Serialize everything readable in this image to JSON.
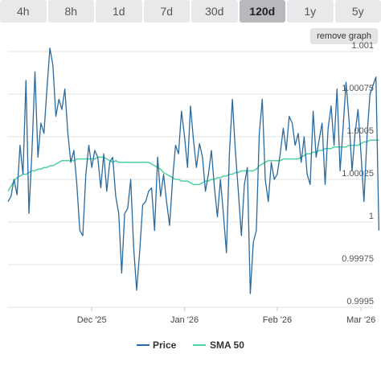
{
  "range_buttons": [
    {
      "label": "4h",
      "active": false
    },
    {
      "label": "8h",
      "active": false
    },
    {
      "label": "1d",
      "active": false
    },
    {
      "label": "7d",
      "active": false
    },
    {
      "label": "30d",
      "active": false
    },
    {
      "label": "120d",
      "active": true
    },
    {
      "label": "1y",
      "active": false
    },
    {
      "label": "5y",
      "active": false
    }
  ],
  "remove_graph_label": "remove graph",
  "colors": {
    "price": "#2a6a9e",
    "sma": "#4fd1a0"
  },
  "chart_data": {
    "type": "line",
    "y_range": [
      0.9995,
      1.001
    ],
    "y_ticks": [
      0.9995,
      0.99975,
      1,
      1.00025,
      1.0005,
      1.00075,
      1.001
    ],
    "y_tick_labels": [
      "0.9995",
      "0.99975",
      "1",
      "1.00025",
      "1.0005",
      "1.00075",
      "1.001"
    ],
    "x_range": [
      0,
      122
    ],
    "x_ticks": [
      28,
      59,
      90,
      118
    ],
    "x_tick_labels": [
      "Dec '25",
      "Jan '26",
      "Feb '26",
      "Mar '26"
    ],
    "grid": true,
    "legend_position": "bottom",
    "series": [
      {
        "name": "Price",
        "values": [
          1.00012,
          1.00015,
          1.00025,
          1.00016,
          1.00045,
          1.00028,
          1.00083,
          1.00005,
          1.00042,
          1.00088,
          1.00038,
          1.00058,
          1.00052,
          1.00078,
          1.00102,
          1.00092,
          1.00062,
          1.00072,
          1.00066,
          1.00078,
          1.00052,
          1.00035,
          1.00042,
          1.00022,
          0.99995,
          0.99992,
          1.00028,
          1.00045,
          1.00032,
          1.00042,
          1.00038,
          1.0002,
          1.0004,
          1.00018,
          1.00035,
          1.00038,
          1.00015,
          1.00005,
          0.9997,
          1.00005,
          1.00008,
          1.00025,
          0.99985,
          0.9996,
          0.99982,
          1.0001,
          1.00012,
          1.00018,
          1.0002,
          0.99995,
          1.00038,
          1.00015,
          1.00028,
          1.00012,
          0.99998,
          1.00025,
          1.00045,
          1.0004,
          1.00065,
          1.0005,
          1.00032,
          1.00068,
          1.00048,
          1.00032,
          1.00046,
          1.00038,
          1.00018,
          1.00028,
          1.00042,
          1.0002,
          1.00003,
          1.00025,
          1.00005,
          0.99982,
          1.0004,
          1.00072,
          1.00042,
          1.00018,
          0.99992,
          1.00022,
          1.00032,
          0.99958,
          0.99988,
          0.99995,
          1.00052,
          1.00072,
          1.00025,
          1.00012,
          1.00035,
          1.00025,
          1.00028,
          1.0004,
          1.00055,
          1.00042,
          1.00062,
          1.00058,
          1.00045,
          1.00052,
          1.00035,
          1.0005,
          1.00028,
          1.00022,
          1.00065,
          1.00038,
          1.00048,
          1.00058,
          1.00022,
          1.00055,
          1.00068,
          1.00045,
          1.00078,
          1.0003,
          1.00055,
          1.00082,
          1.0006,
          1.0003,
          1.00052,
          1.00066,
          1.0004,
          1.00012,
          1.0005,
          1.00075,
          1.0008,
          1.00085,
          0.99995
        ]
      },
      {
        "name": "SMA 50",
        "values": [
          1.00018,
          1.00021,
          1.00024,
          1.00026,
          1.00027,
          1.00028,
          1.00028,
          1.00029,
          1.0003,
          1.0003,
          1.00031,
          1.00031,
          1.00032,
          1.00032,
          1.00033,
          1.00033,
          1.00034,
          1.00035,
          1.00036,
          1.00036,
          1.00036,
          1.00036,
          1.00036,
          1.00037,
          1.00037,
          1.00037,
          1.00037,
          1.00037,
          1.00037,
          1.00037,
          1.00038,
          1.00038,
          1.00038,
          1.00037,
          1.00036,
          1.00035,
          1.00036,
          1.00035,
          1.00035,
          1.00035,
          1.00035,
          1.00035,
          1.00035,
          1.00035,
          1.00035,
          1.00035,
          1.00035,
          1.00035,
          1.00034,
          1.00033,
          1.00032,
          1.00031,
          1.00029,
          1.00028,
          1.00027,
          1.00026,
          1.00025,
          1.00025,
          1.00024,
          1.00024,
          1.00024,
          1.00023,
          1.00022,
          1.00022,
          1.00022,
          1.00023,
          1.00024,
          1.00024,
          1.00025,
          1.00025,
          1.00026,
          1.00026,
          1.00027,
          1.00027,
          1.00028,
          1.00028,
          1.00029,
          1.00029,
          1.0003,
          1.0003,
          1.0003,
          1.0003,
          1.0003,
          1.00031,
          1.00033,
          1.00034,
          1.00035,
          1.00036,
          1.00036,
          1.00036,
          1.00036,
          1.00036,
          1.00037,
          1.00037,
          1.00037,
          1.00037,
          1.00037,
          1.00037,
          1.00038,
          1.00039,
          1.0004,
          1.0004,
          1.00041,
          1.00041,
          1.00042,
          1.00042,
          1.00043,
          1.00043,
          1.00043,
          1.00044,
          1.00044,
          1.00044,
          1.00044,
          1.00044,
          1.00045,
          1.00045,
          1.00045,
          1.00045,
          1.00046,
          1.00047,
          1.00047,
          1.00048,
          1.00048,
          1.00048,
          1.00048
        ]
      }
    ]
  }
}
